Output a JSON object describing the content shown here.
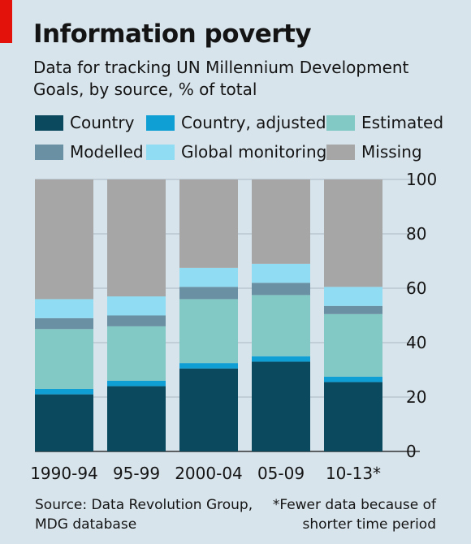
{
  "title": "Information poverty",
  "subtitle": "Data for tracking UN Millennium Development Goals, by source, % of total",
  "colors": {
    "country": "#0b4a5e",
    "country_adjusted": "#0f9fd4",
    "estimated": "#82c8c4",
    "modelled": "#6a91a3",
    "global_monitoring": "#8fdcf3",
    "missing": "#a6a6a6"
  },
  "legend": [
    {
      "label": "Country",
      "color": "#0b4a5e"
    },
    {
      "label": "Country, adjusted",
      "color": "#0f9fd4"
    },
    {
      "label": "Estimated",
      "color": "#82c8c4"
    },
    {
      "label": "Modelled",
      "color": "#6a91a3"
    },
    {
      "label": "Global monitoring",
      "color": "#8fdcf3"
    },
    {
      "label": "Missing",
      "color": "#a6a6a6"
    }
  ],
  "footer": {
    "source": "Source: Data Revolution Group, MDG database",
    "note": "*Fewer data because of shorter time period"
  },
  "chart_data": {
    "type": "bar",
    "stacked": true,
    "title": "Information poverty",
    "subtitle": "Data for tracking UN Millennium Development Goals, by source, % of total",
    "categories": [
      "1990-94",
      "95-99",
      "2000-04",
      "05-09",
      "10-13*"
    ],
    "series": [
      {
        "name": "Country",
        "color": "#0b4a5e",
        "values": [
          21,
          24,
          30.5,
          33,
          25.5
        ]
      },
      {
        "name": "Country, adjusted",
        "color": "#0f9fd4",
        "values": [
          2,
          2,
          2,
          2,
          2
        ]
      },
      {
        "name": "Estimated",
        "color": "#82c8c4",
        "values": [
          22,
          20,
          23.5,
          22.5,
          23
        ]
      },
      {
        "name": "Modelled",
        "color": "#6a91a3",
        "values": [
          4,
          4,
          4.5,
          4.5,
          3
        ]
      },
      {
        "name": "Global monitoring",
        "color": "#8fdcf3",
        "values": [
          7,
          7,
          7,
          7,
          7
        ]
      },
      {
        "name": "Missing",
        "color": "#a6a6a6",
        "values": [
          44,
          43,
          32.5,
          31,
          39.5
        ]
      }
    ],
    "ylim": [
      0,
      100
    ],
    "yticks": [
      0,
      20,
      40,
      60,
      80,
      100
    ],
    "ytick_labels": [
      "0",
      "20",
      "40",
      "60",
      "80",
      "100"
    ],
    "yaxis_side": "right",
    "grid": true,
    "legend_position": "top",
    "xlabel": "",
    "ylabel": ""
  }
}
